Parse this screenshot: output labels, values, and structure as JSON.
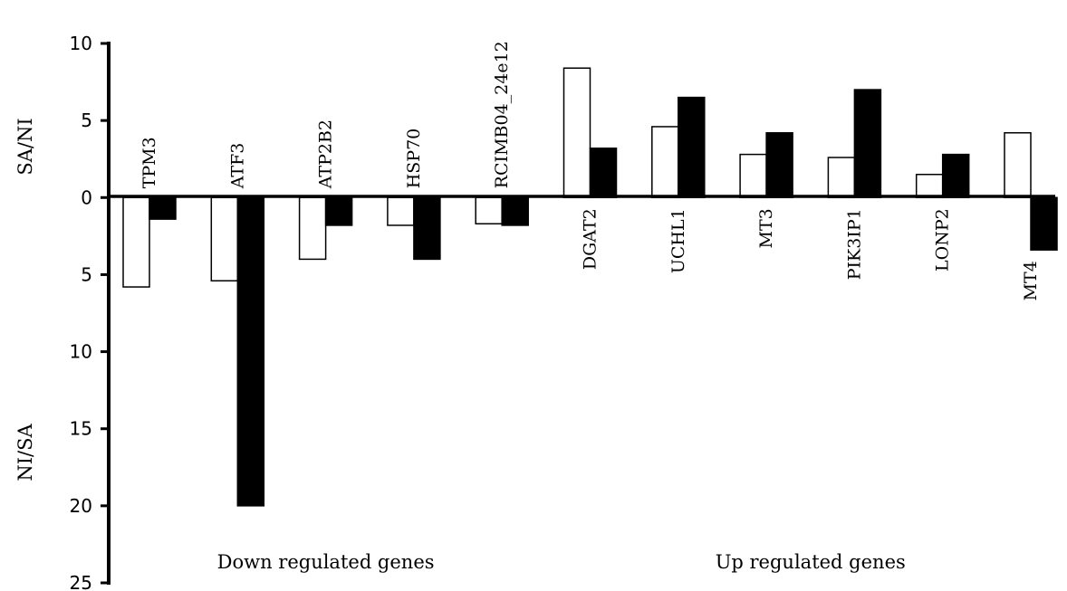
{
  "chart_data": {
    "type": "bar",
    "categories": [
      "TPM3",
      "ATF3",
      "ATP2B2",
      "HSP70",
      "RCIMB04_24e12",
      "DGAT2",
      "UCHL1",
      "MT3",
      "PIK3IP1",
      "LONP2",
      "MT4"
    ],
    "series": [
      {
        "fill": "#ffffff",
        "values": [
          -5.8,
          -5.4,
          -4.0,
          -1.8,
          -1.7,
          8.4,
          4.6,
          2.8,
          2.6,
          1.5,
          4.2
        ]
      },
      {
        "fill": "#000000",
        "values": [
          -1.4,
          -20.0,
          -1.8,
          -4.0,
          -1.8,
          3.2,
          6.5,
          4.2,
          7.0,
          2.8,
          -3.4
        ]
      }
    ],
    "ylim": [
      -25,
      10
    ],
    "y_axis": {
      "upper_label": "SA/NI",
      "lower_label": "NI/SA",
      "ticks": [
        {
          "value": 10,
          "label": "10"
        },
        {
          "value": 5,
          "label": "5"
        },
        {
          "value": 0,
          "label": "0"
        },
        {
          "value": -5,
          "label": "5"
        },
        {
          "value": -10,
          "label": "10"
        },
        {
          "value": -15,
          "label": "15"
        },
        {
          "value": -20,
          "label": "20"
        },
        {
          "value": -25,
          "label": "25"
        }
      ]
    },
    "groups": [
      {
        "label": "Down regulated genes",
        "from": 0,
        "to": 4
      },
      {
        "label": "Up regulated genes",
        "from": 5,
        "to": 10
      }
    ],
    "gene_label_positions": [
      "above",
      "above",
      "above",
      "above",
      "above",
      "below",
      "below",
      "below",
      "below",
      "below",
      "below-bar"
    ]
  }
}
